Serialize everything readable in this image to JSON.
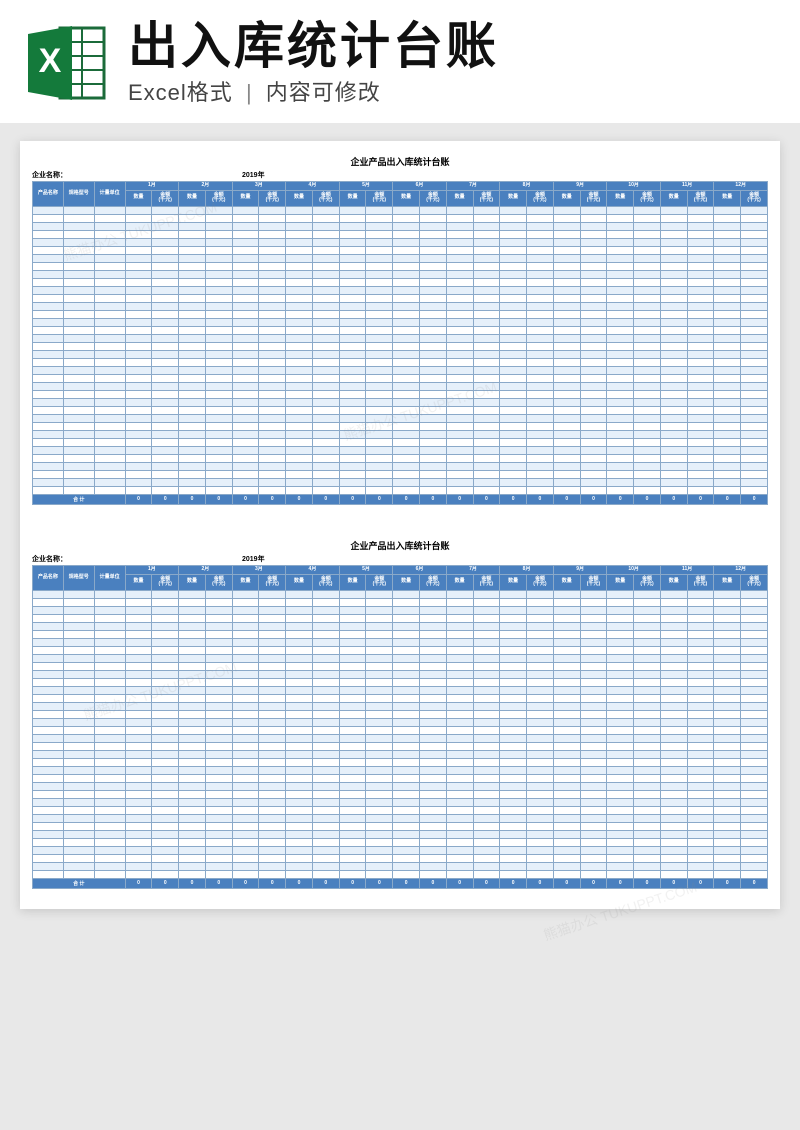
{
  "header": {
    "title": "出入库统计台账",
    "subtitle_left": "Excel格式",
    "subtitle_right": "内容可修改"
  },
  "sheet": {
    "title": "企业产品出入库统计台账",
    "company_label": "企业名称：",
    "year_label": "2019年",
    "front_headers": [
      "产品名称",
      "规格型号",
      "计量单位"
    ],
    "months": [
      "1月",
      "2月",
      "3月",
      "4月",
      "5月",
      "6月",
      "7月",
      "8月",
      "9月",
      "10月",
      "11月",
      "12月"
    ],
    "sub_qty": "数量",
    "sub_amt_l1": "金额",
    "sub_amt_l2": "(千元)",
    "body_rows": 36,
    "total_label": "合 计",
    "total_value": "0"
  },
  "style": {
    "header_bg": "#4a80bf",
    "row_alt_bg": "#e6f0fa",
    "border_color": "#8aa9c9",
    "page_bg": "#e8e8e8",
    "canvas_bg": "#ffffff"
  },
  "watermark": "熊猫办公 TUKUPPT.COM"
}
